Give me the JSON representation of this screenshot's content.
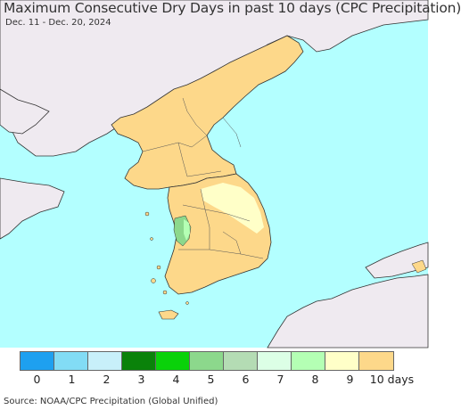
{
  "title": "Maximum Consecutive Dry Days in past 10 days (CPC Precipitation)",
  "date_range": "Dec. 11 - Dec. 20, 2024",
  "source": "Source: NOAA/CPC Precipitation (Global Unified)",
  "colors": {
    "ocean": "#b3ffff",
    "land_outside": "#efeaf0",
    "border": "#333333",
    "class_10": "#fdd88a",
    "class_9": "#ffffc8",
    "class_5": "#8cd88c",
    "class_8": "#b4ffb4"
  },
  "legend": {
    "items": [
      {
        "label": "0",
        "color": "#1ea0f0"
      },
      {
        "label": "1",
        "color": "#82dcf5"
      },
      {
        "label": "2",
        "color": "#c8f0fa"
      },
      {
        "label": "3",
        "color": "#0a820a"
      },
      {
        "label": "4",
        "color": "#0ad20a"
      },
      {
        "label": "5",
        "color": "#8cd88c"
      },
      {
        "label": "6",
        "color": "#b4dcb4"
      },
      {
        "label": "7",
        "color": "#dcffe6"
      },
      {
        "label": "8",
        "color": "#b4ffb4"
      },
      {
        "label": "9",
        "color": "#ffffc8"
      },
      {
        "label": "10 days",
        "color": "#fdd88a"
      }
    ]
  }
}
